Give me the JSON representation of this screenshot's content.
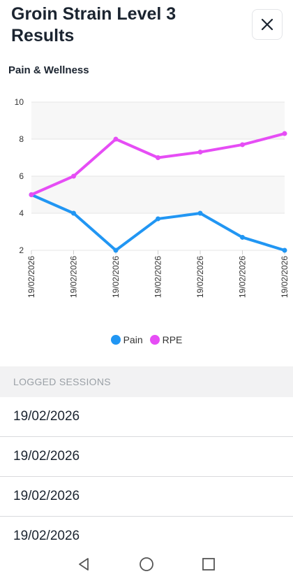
{
  "header": {
    "title": "Groin Strain Level 3 Results"
  },
  "chart_section": {
    "title": "Pain & Wellness"
  },
  "chart_data": {
    "type": "line",
    "categories": [
      "19/02/2026",
      "19/02/2026",
      "19/02/2026",
      "19/02/2026",
      "19/02/2026",
      "19/02/2026",
      "19/02/2026"
    ],
    "y_ticks": [
      "2",
      "4",
      "6",
      "8",
      "10"
    ],
    "ylim": [
      2,
      10
    ],
    "series": [
      {
        "name": "Pain",
        "color": "#2196f3",
        "values": [
          5,
          4,
          2,
          3.7,
          4,
          2.7,
          2
        ]
      },
      {
        "name": "RPE",
        "color": "#e64df5",
        "values": [
          5,
          6,
          8,
          7,
          7.3,
          7.7,
          8.3
        ]
      }
    ],
    "legend_position": "bottom",
    "title": "",
    "xlabel": "",
    "ylabel": ""
  },
  "sessions": {
    "header": "LOGGED SESSIONS",
    "items": [
      "19/02/2026",
      "19/02/2026",
      "19/02/2026",
      "19/02/2026"
    ]
  },
  "icons": {
    "close": "close-icon",
    "nav_back": "back-triangle-icon",
    "nav_home": "home-circle-icon",
    "nav_recents": "recents-square-icon"
  }
}
